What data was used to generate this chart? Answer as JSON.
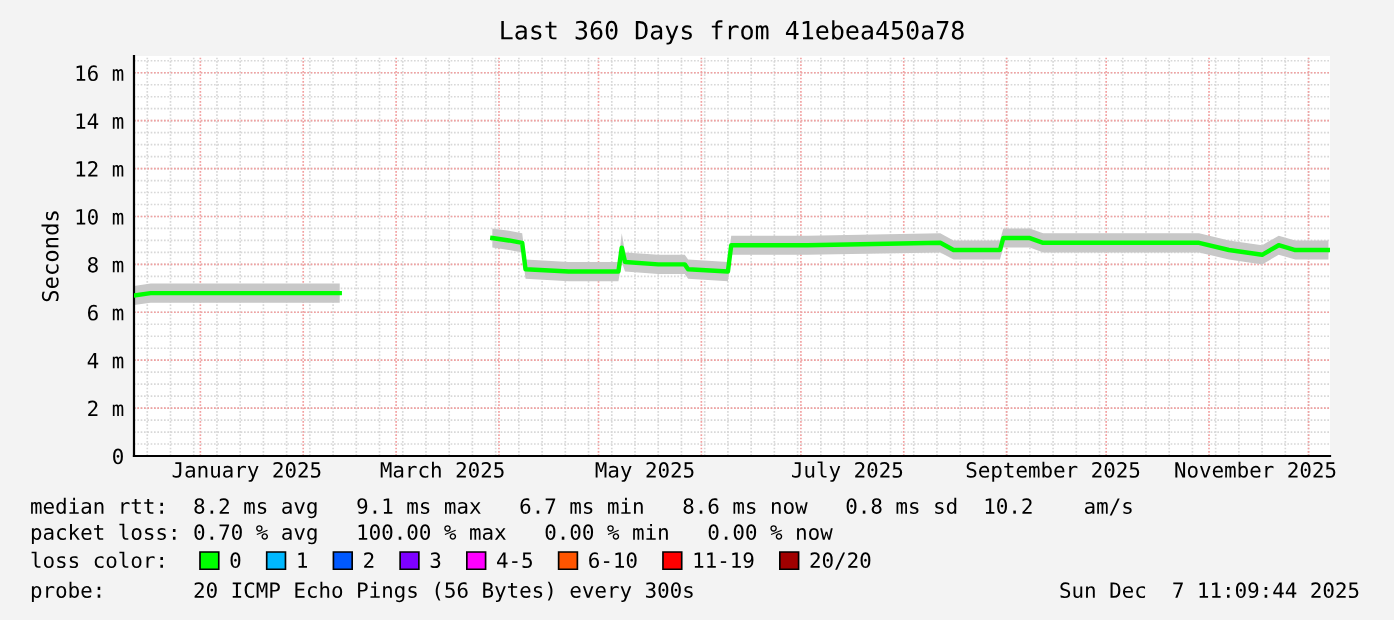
{
  "chart_data": {
    "type": "line",
    "title": "Last 360 Days from 41ebea450a78",
    "ylabel": "Seconds",
    "legend_title": "loss color:",
    "x": [
      "2024-12-12",
      "2024-12-17",
      "2025-02-12",
      "2025-02-25",
      "2025-03-30",
      "2025-04-04",
      "2025-04-08",
      "2025-04-09",
      "2025-04-22",
      "2025-05-07",
      "2025-05-08",
      "2025-05-09",
      "2025-05-19",
      "2025-05-27",
      "2025-05-28",
      "2025-06-09",
      "2025-06-10",
      "2025-07-03",
      "2025-08-12",
      "2025-08-16",
      "2025-08-30",
      "2025-08-31",
      "2025-09-08",
      "2025-09-12",
      "2025-10-29",
      "2025-11-07",
      "2025-11-17",
      "2025-11-22",
      "2025-11-27",
      "2025-12-07"
    ],
    "series": [
      {
        "name": "0",
        "color": "#00ff00",
        "values": [
          6.7,
          6.8,
          6.8,
          null,
          9.1,
          9.0,
          8.9,
          7.8,
          7.7,
          7.7,
          8.7,
          8.1,
          8.0,
          8.0,
          7.8,
          7.7,
          8.8,
          8.8,
          8.9,
          8.6,
          8.6,
          9.1,
          9.1,
          8.9,
          8.9,
          8.6,
          8.4,
          8.8,
          8.6,
          8.6
        ],
        "lower": [
          6.3,
          6.4,
          6.4,
          null,
          8.7,
          8.6,
          8.5,
          7.4,
          7.3,
          7.3,
          8.1,
          7.7,
          7.6,
          7.6,
          7.4,
          7.3,
          8.4,
          8.4,
          8.5,
          8.2,
          8.2,
          8.7,
          8.7,
          8.5,
          8.5,
          8.2,
          8.0,
          8.4,
          8.2,
          8.2
        ],
        "upper": [
          7.1,
          7.2,
          7.2,
          null,
          9.5,
          9.4,
          9.3,
          8.2,
          8.1,
          8.1,
          9.3,
          8.5,
          8.4,
          8.4,
          8.2,
          8.1,
          9.2,
          9.2,
          9.3,
          9.0,
          9.0,
          9.5,
          9.5,
          9.3,
          9.3,
          9.0,
          8.8,
          9.2,
          9.0,
          9.0
        ]
      },
      {
        "name": "1",
        "color": "#00b8ff",
        "values": [
          null,
          null,
          null,
          null,
          null,
          null,
          null,
          null,
          null,
          null,
          null,
          null,
          null,
          null,
          null,
          null,
          null,
          null,
          null,
          null,
          null,
          null,
          null,
          null,
          null,
          null,
          null,
          null,
          null,
          null
        ]
      },
      {
        "name": "2",
        "color": "#0059ff",
        "values": [
          null,
          null,
          null,
          null,
          null,
          null,
          null,
          null,
          null,
          null,
          null,
          null,
          null,
          null,
          null,
          null,
          null,
          null,
          null,
          null,
          null,
          null,
          null,
          null,
          null,
          null,
          null,
          null,
          null,
          null
        ]
      },
      {
        "name": "3",
        "color": "#7e00ff",
        "values": [
          null,
          null,
          null,
          null,
          null,
          null,
          null,
          null,
          null,
          null,
          null,
          null,
          null,
          null,
          null,
          null,
          null,
          null,
          null,
          null,
          null,
          null,
          null,
          null,
          null,
          null,
          null,
          null,
          null,
          null
        ]
      },
      {
        "name": "4-5",
        "color": "#ff00ff",
        "values": [
          null,
          null,
          null,
          null,
          null,
          null,
          null,
          null,
          null,
          null,
          null,
          null,
          null,
          null,
          null,
          null,
          null,
          null,
          null,
          null,
          null,
          null,
          null,
          null,
          null,
          null,
          null,
          null,
          null,
          null
        ]
      },
      {
        "name": "6-10",
        "color": "#ff5500",
        "values": [
          null,
          null,
          null,
          null,
          null,
          null,
          null,
          null,
          null,
          null,
          null,
          null,
          null,
          null,
          null,
          null,
          null,
          null,
          null,
          null,
          null,
          null,
          null,
          null,
          null,
          null,
          null,
          null,
          null,
          null
        ]
      },
      {
        "name": "11-19",
        "color": "#ff0000",
        "values": [
          null,
          null,
          null,
          null,
          null,
          null,
          null,
          null,
          null,
          null,
          null,
          null,
          null,
          null,
          null,
          null,
          null,
          null,
          null,
          null,
          null,
          null,
          null,
          null,
          null,
          null,
          null,
          null,
          null,
          null
        ]
      },
      {
        "name": "20/20",
        "color": "#a10000",
        "values": [
          null,
          null,
          null,
          null,
          null,
          null,
          null,
          null,
          null,
          null,
          null,
          null,
          null,
          null,
          null,
          null,
          null,
          null,
          null,
          null,
          null,
          null,
          null,
          null,
          null,
          null,
          null,
          null,
          null,
          null
        ]
      }
    ],
    "xlim": [
      "2024-12-12",
      "2025-12-07T11:09"
    ],
    "xticks": [
      {
        "value": "2025-01-15",
        "label": "January 2025"
      },
      {
        "value": "2025-03-15",
        "label": "March 2025"
      },
      {
        "value": "2025-05-15",
        "label": "May 2025"
      },
      {
        "value": "2025-07-15",
        "label": "July 2025"
      },
      {
        "value": "2025-09-15",
        "label": "September 2025"
      },
      {
        "value": "2025-11-15",
        "label": "November 2025"
      }
    ],
    "ylim": [
      0,
      16.7
    ],
    "yticks": [
      0,
      {
        "value": 2,
        "label": "2 m"
      },
      {
        "value": 4,
        "label": "4 m"
      },
      {
        "value": 6,
        "label": "6 m"
      },
      {
        "value": 8,
        "label": "8 m"
      },
      {
        "value": 10,
        "label": "10 m"
      },
      {
        "value": 12,
        "label": "12 m"
      },
      {
        "value": 14,
        "label": "14 m"
      },
      {
        "value": 16,
        "label": "16 m"
      }
    ],
    "grid": true,
    "legend": "bottom",
    "marker": "none",
    "line_style": "solid",
    "annotations": [
      "median rtt:  8.2 ms avg   9.1 ms max   6.7 ms min   8.6 ms now   0.8 ms sd  10.2    am/s",
      "packet loss: 0.70 % avg   100.00 % max   0.00 % min   0.00 % now",
      "probe:       20 ICMP Echo Pings (56 Bytes) every 300s",
      "Sun Dec  7 11:09:44 2025"
    ]
  }
}
